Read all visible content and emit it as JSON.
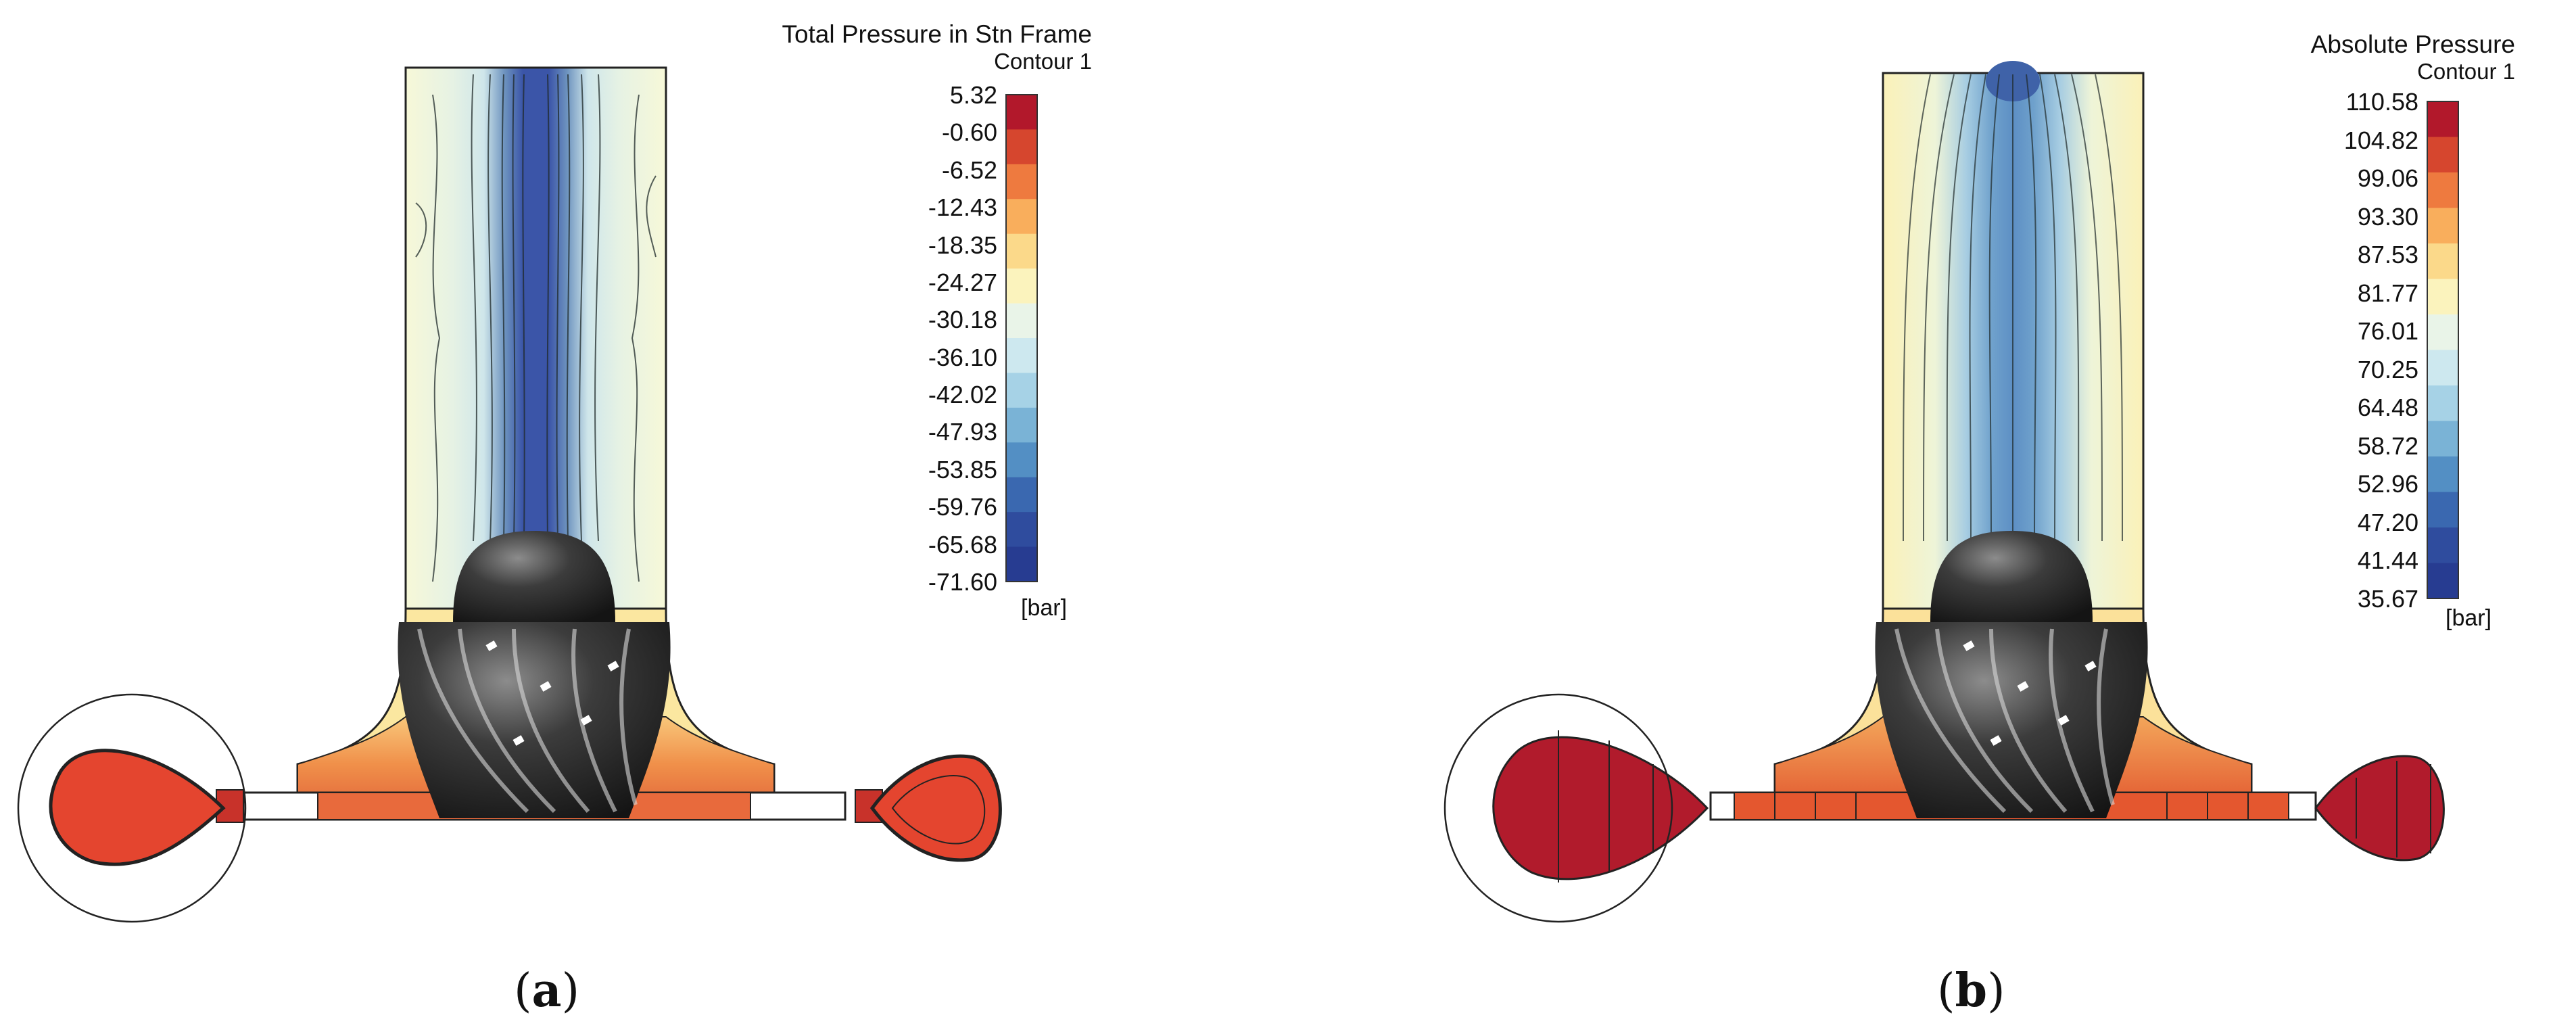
{
  "panels": [
    {
      "id": "a",
      "legend_title": "Total Pressure in Stn Frame",
      "legend_subtitle": "Contour 1",
      "unit": "[bar]",
      "scale_values": [
        "5.32",
        "-0.60",
        "-6.52",
        "-12.43",
        "-18.35",
        "-24.27",
        "-30.18",
        "-36.10",
        "-42.02",
        "-47.93",
        "-53.85",
        "-59.76",
        "-65.68",
        "-71.60"
      ],
      "caption_letter": "a"
    },
    {
      "id": "b",
      "legend_title": "Absolute Pressure",
      "legend_subtitle": "Contour 1",
      "unit": "[bar]",
      "scale_values": [
        "110.58",
        "104.82",
        "99.06",
        "93.30",
        "87.53",
        "81.77",
        "76.01",
        "70.25",
        "64.48",
        "58.72",
        "52.96",
        "47.20",
        "41.44",
        "35.67"
      ],
      "caption_letter": "b"
    }
  ],
  "colormap": [
    "#b2182b",
    "#d6462e",
    "#ee7a3f",
    "#f9ae5c",
    "#fbd98a",
    "#fbf3bd",
    "#e9f4e8",
    "#cde8ef",
    "#a6d2e6",
    "#7ab3d6",
    "#538fc4",
    "#3a68b0",
    "#2f4c9e",
    "#273c91"
  ]
}
